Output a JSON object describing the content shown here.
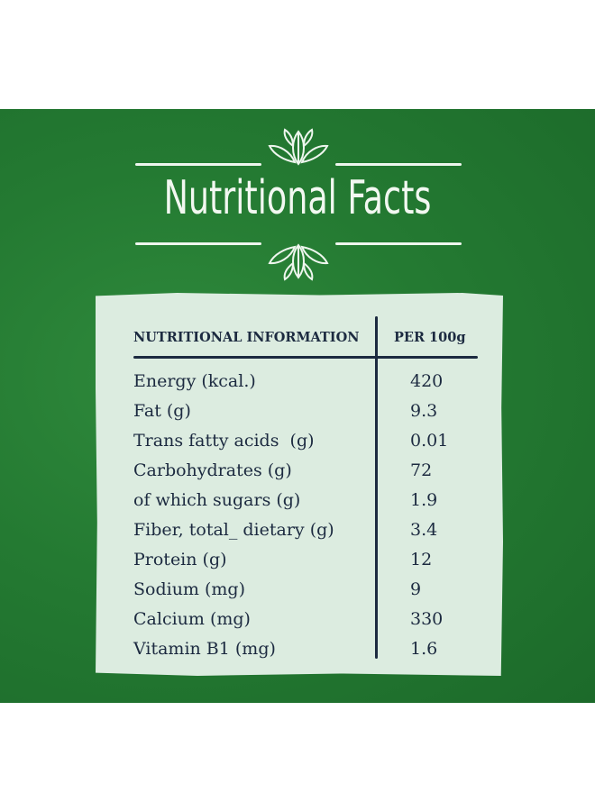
{
  "title": "Nutritional Facts",
  "table": {
    "header_left": "NUTRITIONAL INFORMATION",
    "header_right": "PER 100g",
    "rows": [
      {
        "name": "Energy (kcal.)",
        "value": "420"
      },
      {
        "name": "Fat (g)",
        "value": "9.3"
      },
      {
        "name": "Trans fatty acids  (g)",
        "value": "0.01"
      },
      {
        "name": "Carbohydrates (g)",
        "value": "72"
      },
      {
        "name": "of which sugars (g)",
        "value": "1.9"
      },
      {
        "name": "Fiber, total_ dietary (g)",
        "value": "3.4"
      },
      {
        "name": "Protein (g)",
        "value": "12"
      },
      {
        "name": "Sodium (mg)",
        "value": "9"
      },
      {
        "name": "Calcium (mg)",
        "value": "330"
      },
      {
        "name": "Vitamin B1 (mg)",
        "value": "1.6"
      }
    ]
  },
  "colors": {
    "background_green": "#247a32",
    "card": "#dcece0",
    "ink": "#1c2a40",
    "title_text": "#f2f8f1"
  },
  "icons": [
    "leaf-ornament-icon"
  ]
}
